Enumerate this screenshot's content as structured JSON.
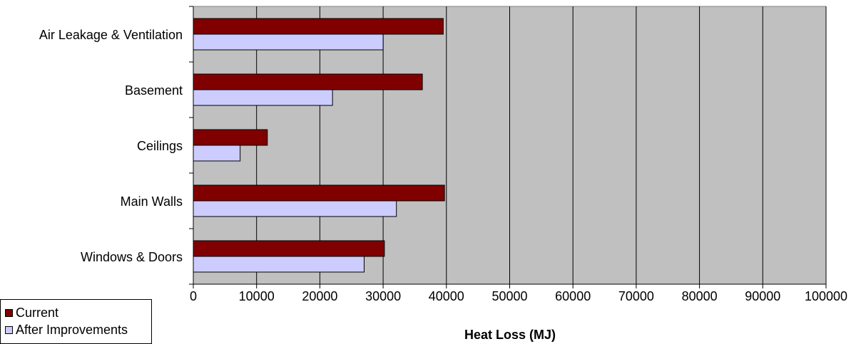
{
  "chart_data": {
    "type": "bar",
    "orientation": "horizontal",
    "categories": [
      "Air Leakage & Ventilation",
      "Basement",
      "Ceilings",
      "Main Walls",
      "Windows & Doors"
    ],
    "series": [
      {
        "name": "Current",
        "values": [
          39500,
          36200,
          11700,
          39700,
          30200
        ],
        "color": "#800000"
      },
      {
        "name": "After Improvements",
        "values": [
          30000,
          22000,
          7400,
          32100,
          27000
        ],
        "color": "#ccccff"
      }
    ],
    "xlabel": "Heat Loss (MJ)",
    "xlim": [
      0,
      100000
    ],
    "xticks": [
      "0",
      "10000",
      "20000",
      "30000",
      "40000",
      "50000",
      "60000",
      "70000",
      "80000",
      "90000",
      "100000"
    ],
    "plot_background": "#c0c0c0",
    "grid": true,
    "legend_position": "bottom-left"
  }
}
